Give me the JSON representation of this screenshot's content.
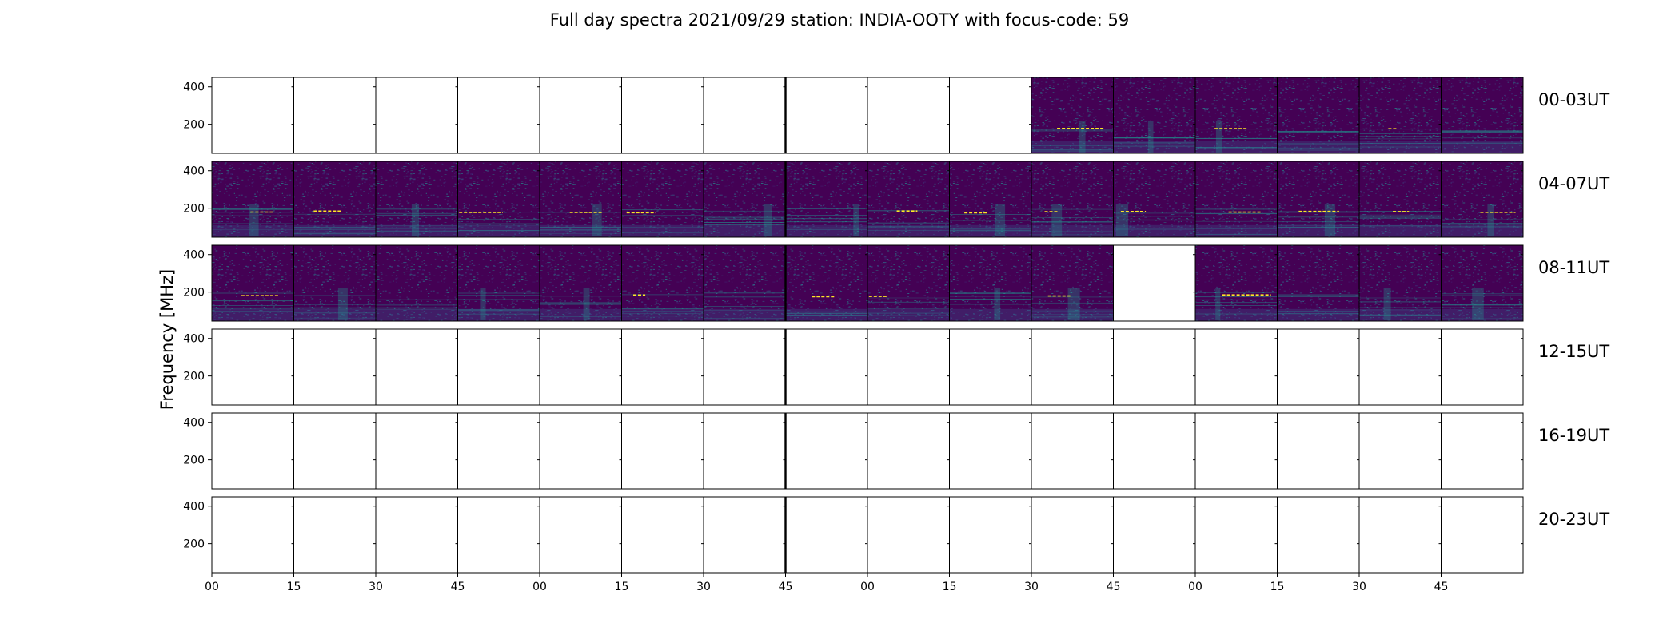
{
  "chart_data": {
    "type": "heatmap",
    "title": "Full day spectra 2021/09/29 station: INDIA-OOTY with focus-code: 59",
    "ylabel": "Frequency [MHz]",
    "xlabel": "",
    "y_ticks": [
      200,
      400
    ],
    "y_ticks_labels": [
      "200",
      "400"
    ],
    "ylim": [
      45,
      450
    ],
    "x_tick_labels": [
      "00",
      "15",
      "30",
      "45",
      "00",
      "15",
      "30",
      "45",
      "00",
      "15",
      "30",
      "45",
      "00",
      "15",
      "30",
      "45"
    ],
    "colormap": "viridis",
    "colors": {
      "background": "#440154",
      "mid": "#3b528b",
      "bright": "#21918c",
      "burst": "#fde725"
    },
    "rows": [
      {
        "label": "00-03UT",
        "panels": [
          0,
          0,
          0,
          0,
          0,
          0,
          0,
          0,
          0,
          0,
          1,
          1,
          1,
          1,
          1,
          1
        ]
      },
      {
        "label": "04-07UT",
        "panels": [
          1,
          1,
          1,
          1,
          1,
          1,
          1,
          1,
          1,
          1,
          1,
          1,
          1,
          1,
          1,
          1
        ]
      },
      {
        "label": "08-11UT",
        "panels": [
          1,
          1,
          1,
          1,
          1,
          1,
          1,
          1,
          1,
          1,
          1,
          0,
          1,
          1,
          1,
          1
        ]
      },
      {
        "label": "12-15UT",
        "panels": [
          0,
          0,
          0,
          0,
          0,
          0,
          0,
          0,
          0,
          0,
          0,
          0,
          0,
          0,
          0,
          0
        ]
      },
      {
        "label": "16-19UT",
        "panels": [
          0,
          0,
          0,
          0,
          0,
          0,
          0,
          0,
          0,
          0,
          0,
          0,
          0,
          0,
          0,
          0
        ]
      },
      {
        "label": "20-23UT",
        "panels": [
          0,
          0,
          0,
          0,
          0,
          0,
          0,
          0,
          0,
          0,
          0,
          0,
          0,
          0,
          0,
          0
        ]
      }
    ]
  }
}
